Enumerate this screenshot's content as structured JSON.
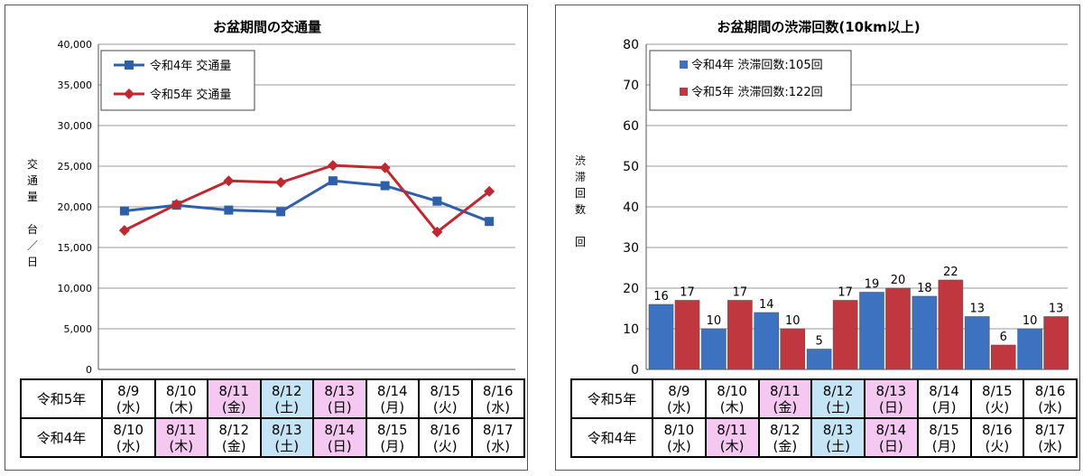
{
  "left_chart": {
    "title": "お盆期間の交通量",
    "ylabel": "交通量　台／日",
    "yticks": [
      "0",
      "5,000",
      "10,000",
      "15,000",
      "20,000",
      "25,000",
      "30,000",
      "35,000",
      "40,000"
    ],
    "colors": {
      "r4": "#2e5fa8",
      "r5": "#c0282f"
    }
  },
  "right_chart": {
    "title": "お盆期間の渋滞回数(10km以上)",
    "ylabel": "渋滞回数　回",
    "yticks": [
      "0",
      "10",
      "20",
      "30",
      "40",
      "50",
      "60",
      "70",
      "80"
    ],
    "colors": {
      "r4": "#3c72bf",
      "r5": "#c0373f"
    }
  },
  "chart_data": [
    {
      "type": "line",
      "title": "お盆期間の交通量",
      "ylabel": "交通量　台／日",
      "ylim": [
        0,
        40000
      ],
      "categories": [
        "8/9(水)",
        "8/10(木)",
        "8/11(金)",
        "8/12(土)",
        "8/13(日)",
        "8/14(月)",
        "8/15(火)",
        "8/16(水)"
      ],
      "legend_position": "top-left",
      "grid": true,
      "series": [
        {
          "name": "令和4年 交通量",
          "values": [
            19500,
            20200,
            19600,
            19400,
            23200,
            22600,
            20700,
            18200
          ]
        },
        {
          "name": "令和5年 交通量",
          "values": [
            17100,
            20300,
            23200,
            23000,
            25100,
            24800,
            16900,
            21900
          ]
        }
      ]
    },
    {
      "type": "bar",
      "title": "お盆期間の渋滞回数(10km以上)",
      "ylabel": "渋滞回数　回",
      "ylim": [
        0,
        80
      ],
      "categories": [
        "8/9(水)",
        "8/10(木)",
        "8/11(金)",
        "8/12(土)",
        "8/13(日)",
        "8/14(月)",
        "8/15(火)",
        "8/16(水)"
      ],
      "legend_position": "top-left",
      "grid": true,
      "series": [
        {
          "name": "令和4年 渋滞回数:105回",
          "values": [
            16,
            10,
            14,
            5,
            19,
            18,
            13,
            10
          ]
        },
        {
          "name": "令和5年 渋滞回数:122回",
          "values": [
            17,
            17,
            10,
            17,
            20,
            22,
            6,
            13
          ]
        }
      ]
    }
  ],
  "date_table": {
    "rows": [
      {
        "label": "令和5年",
        "cells": [
          {
            "date": "8/9",
            "wd": "(水)",
            "kind": ""
          },
          {
            "date": "8/10",
            "wd": "(木)",
            "kind": ""
          },
          {
            "date": "8/11",
            "wd": "(金)",
            "kind": "hol"
          },
          {
            "date": "8/12",
            "wd": "(土)",
            "kind": "sat"
          },
          {
            "date": "8/13",
            "wd": "(日)",
            "kind": "hol"
          },
          {
            "date": "8/14",
            "wd": "(月)",
            "kind": ""
          },
          {
            "date": "8/15",
            "wd": "(火)",
            "kind": ""
          },
          {
            "date": "8/16",
            "wd": "(水)",
            "kind": ""
          }
        ]
      },
      {
        "label": "令和4年",
        "cells": [
          {
            "date": "8/10",
            "wd": "(水)",
            "kind": ""
          },
          {
            "date": "8/11",
            "wd": "(木)",
            "kind": "hol"
          },
          {
            "date": "8/12",
            "wd": "(金)",
            "kind": ""
          },
          {
            "date": "8/13",
            "wd": "(土)",
            "kind": "sat"
          },
          {
            "date": "8/14",
            "wd": "(日)",
            "kind": "hol"
          },
          {
            "date": "8/15",
            "wd": "(月)",
            "kind": ""
          },
          {
            "date": "8/16",
            "wd": "(火)",
            "kind": ""
          },
          {
            "date": "8/17",
            "wd": "(水)",
            "kind": ""
          }
        ]
      }
    ]
  }
}
